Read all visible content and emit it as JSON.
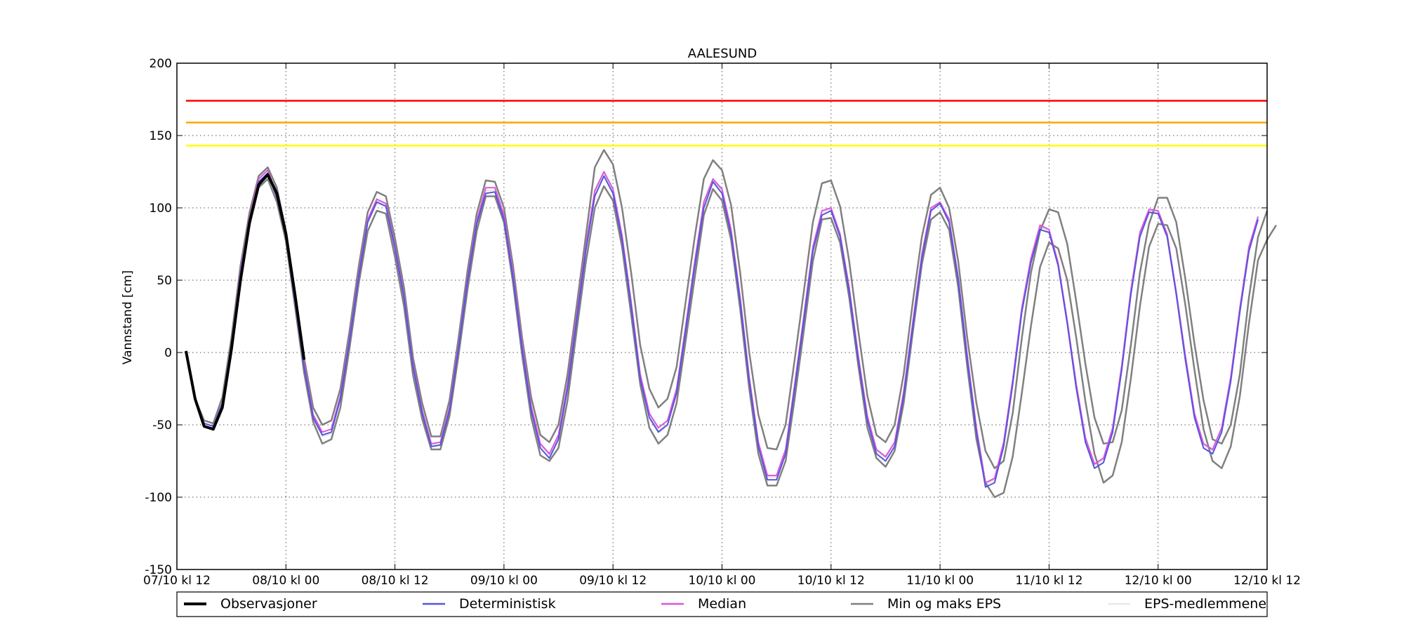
{
  "chart_data": {
    "type": "line",
    "title": "AALESUND",
    "xlabel": "",
    "ylabel": "Vannstand [cm]",
    "ylim": [
      -150,
      200
    ],
    "yticks": [
      -150,
      -100,
      -50,
      0,
      50,
      100,
      150,
      200
    ],
    "xlim": [
      0,
      120
    ],
    "xticks": [
      0,
      12,
      24,
      36,
      48,
      60,
      72,
      84,
      96,
      108,
      120
    ],
    "xtick_labels": [
      "07/10 kl 12",
      "08/10 kl 00",
      "08/10 kl 12",
      "09/10 kl 00",
      "09/10 kl 12",
      "10/10 kl 00",
      "10/10 kl 12",
      "11/10 kl 00",
      "11/10 kl 12",
      "12/10 kl 00",
      "12/10 kl 12"
    ],
    "grid": true,
    "legend_position": "bottom",
    "thresholds": [
      {
        "value": 174,
        "color": "#ff0000"
      },
      {
        "value": 159,
        "color": "#ffa500"
      },
      {
        "value": 143,
        "color": "#ffff00"
      }
    ],
    "x_step_hours": 1,
    "series": [
      {
        "name": "Observasjoner",
        "color": "#000000",
        "start": 1,
        "values": [
          1,
          -32,
          -51,
          -53,
          -38,
          2,
          50,
          90,
          116,
          123,
          110,
          82,
          40,
          -5
        ]
      },
      {
        "name": "Deterministisk",
        "color": "#5555dd",
        "start": 1,
        "values": [
          1,
          -32,
          -49,
          -51,
          -35,
          5,
          55,
          92,
          118,
          124,
          107,
          80,
          35,
          -10,
          -45,
          -57,
          -55,
          -32,
          8,
          52,
          90,
          104,
          101,
          72,
          38,
          -10,
          -42,
          -65,
          -64,
          -40,
          3,
          50,
          89,
          110,
          111,
          92,
          52,
          2,
          -40,
          -66,
          -73,
          -60,
          -25,
          22,
          70,
          108,
          122,
          110,
          78,
          32,
          -18,
          -45,
          -55,
          -50,
          -28,
          15,
          60,
          100,
          118,
          110,
          82,
          35,
          -20,
          -65,
          -88,
          -88,
          -70,
          -25,
          22,
          70,
          95,
          98,
          80,
          42,
          -5,
          -47,
          -70,
          -75,
          -65,
          -30,
          18,
          65,
          98,
          103,
          90,
          50,
          -5,
          -55,
          -93,
          -90,
          -65,
          -22,
          28,
          62,
          85,
          83,
          60,
          20,
          -25,
          -62,
          -80,
          -76,
          -55,
          -12,
          40,
          80,
          97,
          96,
          80,
          40,
          -5,
          -45,
          -66,
          -70,
          -55,
          -20,
          28,
          70,
          92
        ]
      },
      {
        "name": "Median",
        "color": "#dd55dd",
        "start": 1,
        "values": [
          1,
          -32,
          -49,
          -51,
          -35,
          6,
          56,
          93,
          120,
          126,
          109,
          81,
          36,
          -8,
          -43,
          -55,
          -53,
          -30,
          10,
          54,
          92,
          106,
          103,
          74,
          40,
          -8,
          -40,
          -63,
          -62,
          -38,
          5,
          52,
          91,
          114,
          114,
          95,
          55,
          5,
          -37,
          -63,
          -70,
          -57,
          -22,
          25,
          73,
          112,
          125,
          113,
          81,
          35,
          -15,
          -42,
          -52,
          -47,
          -25,
          18,
          63,
          104,
          120,
          113,
          85,
          38,
          -17,
          -62,
          -85,
          -85,
          -67,
          -22,
          25,
          73,
          98,
          100,
          82,
          45,
          -2,
          -44,
          -67,
          -72,
          -62,
          -27,
          21,
          68,
          100,
          104,
          92,
          52,
          -2,
          -52,
          -90,
          -87,
          -62,
          -19,
          31,
          65,
          88,
          85,
          62,
          22,
          -22,
          -59,
          -77,
          -73,
          -52,
          -9,
          43,
          83,
          99,
          98,
          82,
          42,
          -2,
          -42,
          -63,
          -67,
          -52,
          -17,
          31,
          73,
          94
        ]
      },
      {
        "name": "Min og maks EPS",
        "color": "#808080",
        "start": 1,
        "values": [
          1,
          -32,
          -47,
          -49,
          -31,
          10,
          60,
          97,
          122,
          128,
          114,
          84,
          40,
          -4,
          -38,
          -50,
          -47,
          -25,
          15,
          59,
          97,
          111,
          108,
          79,
          45,
          -4,
          -35,
          -58,
          -58,
          -33,
          10,
          57,
          96,
          119,
          118,
          100,
          60,
          10,
          -31,
          -57,
          -62,
          -50,
          -15,
          32,
          80,
          128,
          140,
          130,
          100,
          55,
          5,
          -25,
          -38,
          -32,
          -10,
          35,
          80,
          120,
          133,
          126,
          102,
          55,
          0,
          -43,
          -66,
          -67,
          -50,
          -5,
          42,
          90,
          117,
          119,
          101,
          63,
          15,
          -30,
          -57,
          -62,
          -50,
          -15,
          35,
          80,
          109,
          114,
          100,
          63,
          10,
          -35,
          -68,
          -80,
          -75,
          -42,
          10,
          55,
          84,
          99,
          97,
          75,
          35,
          -8,
          -45,
          -63,
          -62,
          -40,
          5,
          55,
          89,
          107,
          107,
          90,
          51,
          6,
          -33,
          -60,
          -63,
          -50,
          -15,
          38,
          80,
          98
        ]
      },
      {
        "name": "Min og maks EPS",
        "color": "#808080",
        "start": 1,
        "values": [
          1,
          -32,
          -51,
          -53,
          -38,
          0,
          50,
          88,
          114,
          120,
          104,
          77,
          32,
          -14,
          -48,
          -63,
          -60,
          -38,
          3,
          47,
          84,
          98,
          96,
          66,
          32,
          -16,
          -46,
          -67,
          -67,
          -44,
          -2,
          44,
          84,
          108,
          108,
          90,
          48,
          -2,
          -45,
          -71,
          -75,
          -66,
          -33,
          15,
          62,
          100,
          115,
          105,
          73,
          26,
          -22,
          -52,
          -63,
          -57,
          -35,
          8,
          52,
          95,
          113,
          105,
          78,
          30,
          -25,
          -70,
          -92,
          -92,
          -75,
          -32,
          15,
          63,
          92,
          93,
          76,
          38,
          -9,
          -52,
          -73,
          -79,
          -68,
          -35,
          14,
          61,
          92,
          97,
          85,
          45,
          -10,
          -60,
          -90,
          -100,
          -97,
          -72,
          -28,
          18,
          59,
          76,
          72,
          50,
          10,
          -34,
          -70,
          -90,
          -85,
          -62,
          -18,
          32,
          73,
          89,
          88,
          72,
          33,
          -12,
          -53,
          -75,
          -80,
          -65,
          -30,
          20,
          64,
          78,
          88
        ]
      },
      {
        "name": "EPS-medlemmene",
        "color": "#cccccc",
        "start": 14,
        "values": [
          -11,
          -46,
          -58,
          -56,
          -33,
          7,
          52,
          91,
          105,
          102,
          73,
          38,
          -9,
          -41,
          -64,
          -63,
          -39,
          4,
          51,
          90,
          112,
          112,
          93,
          53,
          4,
          -38,
          -64,
          -71,
          -58,
          -24,
          24,
          72,
          110,
          124,
          112,
          80,
          34,
          -16,
          -43,
          -54,
          -49,
          -27,
          17,
          62,
          103,
          119,
          112,
          84,
          37,
          -18,
          -63,
          -86,
          -86,
          -68,
          -24,
          24,
          72,
          97,
          99,
          81,
          44,
          -3,
          -45,
          -68,
          -73,
          -63,
          -29,
          20,
          67,
          99,
          104,
          91,
          51,
          -3,
          -53,
          -91,
          -88,
          -63,
          -20,
          30,
          64,
          87,
          84,
          61,
          21,
          -23,
          -60,
          -78,
          -74,
          -53,
          -10,
          42,
          82,
          98,
          97,
          81,
          41,
          -3,
          -43,
          -64,
          -68,
          -53,
          -18,
          30,
          72,
          93
        ]
      }
    ]
  }
}
